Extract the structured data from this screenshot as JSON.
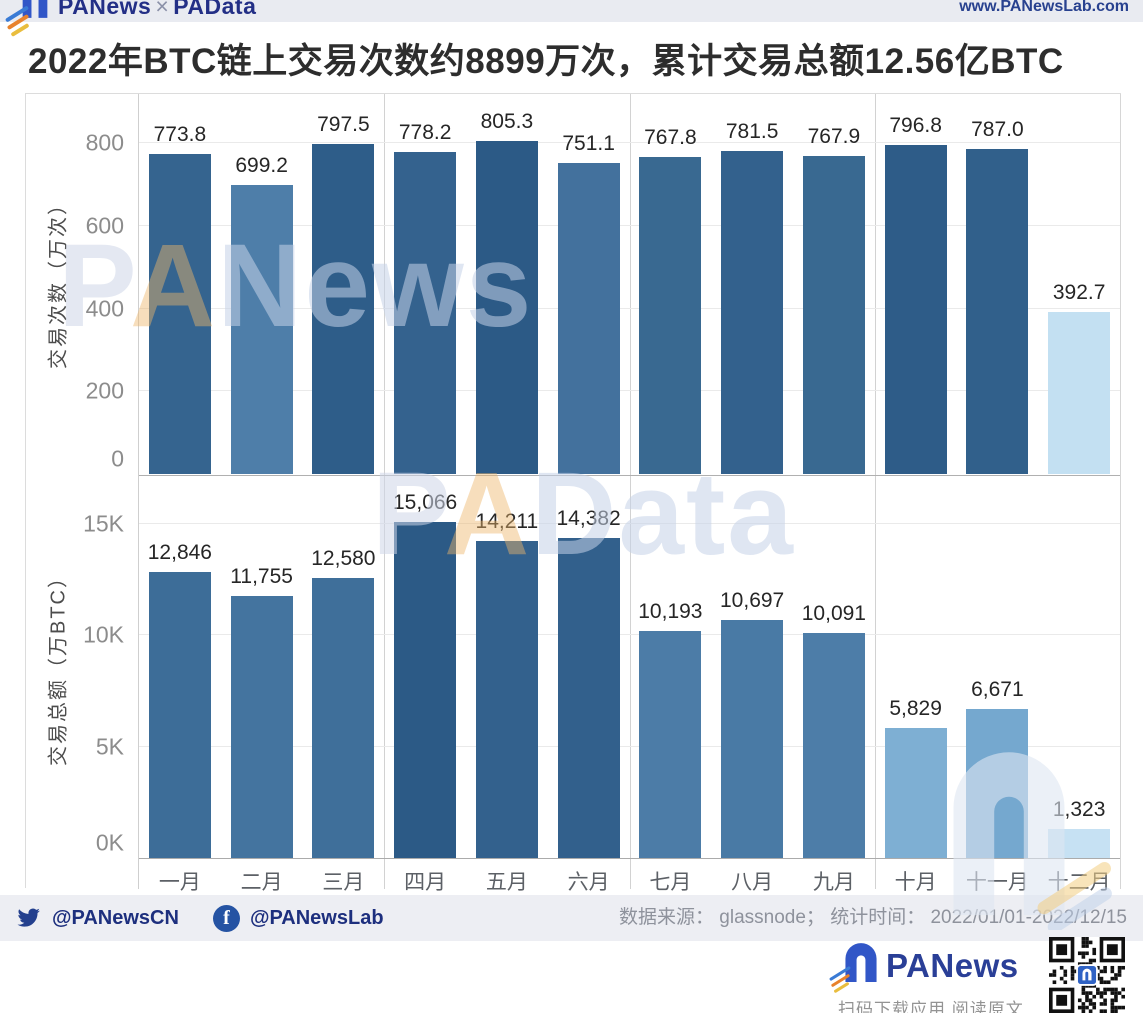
{
  "header": {
    "brand_primary": "PANews",
    "brand_sep": "×",
    "brand_secondary": "PAData",
    "url": "www.PANewsLab.com"
  },
  "title": "2022年BTC链上交易次数约8899万次，累计交易总额12.56亿BTC",
  "watermarks": {
    "top": "PANews",
    "bottom": "PAData"
  },
  "chart_data": [
    {
      "type": "bar",
      "ylabel": "交易次数（万次）",
      "categories": [
        "一月",
        "二月",
        "三月",
        "四月",
        "五月",
        "六月",
        "七月",
        "八月",
        "九月",
        "十月",
        "十一月",
        "十二月"
      ],
      "values": [
        773.8,
        699.2,
        797.5,
        778.2,
        805.3,
        751.1,
        767.8,
        781.5,
        767.9,
        796.8,
        787.0,
        392.7
      ],
      "labels": [
        "773.8",
        "699.2",
        "797.5",
        "778.2",
        "805.3",
        "751.1",
        "767.8",
        "781.5",
        "767.9",
        "796.8",
        "787.0",
        "392.7"
      ],
      "colors": [
        "#35648F",
        "#4E7EA9",
        "#2E5D89",
        "#34628E",
        "#2C5A86",
        "#43719D",
        "#396991",
        "#33618D",
        "#396991",
        "#2E5C88",
        "#31608B",
        "#C3E0F2"
      ],
      "ylim": [
        0,
        919
      ],
      "yticks": [
        {
          "v": 0,
          "label": "0"
        },
        {
          "v": 200,
          "label": "200"
        },
        {
          "v": 400,
          "label": "400"
        },
        {
          "v": 600,
          "label": "600"
        },
        {
          "v": 800,
          "label": "800"
        }
      ],
      "grid": true,
      "legend": "none"
    },
    {
      "type": "bar",
      "ylabel": "交易总额（万BTC）",
      "categories": [
        "一月",
        "二月",
        "三月",
        "四月",
        "五月",
        "六月",
        "七月",
        "八月",
        "九月",
        "十月",
        "十一月",
        "十二月"
      ],
      "values": [
        12846,
        11755,
        12580,
        15066,
        14211,
        14382,
        10193,
        10697,
        10091,
        5829,
        6671,
        1323
      ],
      "labels": [
        "12,846",
        "11,755",
        "12,580",
        "15,066",
        "14,211",
        "14,382",
        "10,193",
        "10,697",
        "10,091",
        "5,829",
        "6,671",
        "1,323"
      ],
      "colors": [
        "#3D6D98",
        "#44749F",
        "#3F6F9A",
        "#2C5A86",
        "#33618D",
        "#32608C",
        "#4C7CA7",
        "#497AA5",
        "#4D7DA8",
        "#7EAFD3",
        "#75A8CF",
        "#C6E1F3"
      ],
      "ylim": [
        0,
        17150
      ],
      "yticks": [
        {
          "v": 0,
          "label": "0K"
        },
        {
          "v": 5000,
          "label": "5K"
        },
        {
          "v": 10000,
          "label": "10K"
        },
        {
          "v": 15000,
          "label": "15K"
        }
      ],
      "grid": true,
      "legend": "none"
    }
  ],
  "footer": {
    "twitter_handle": "@PANewsCN",
    "facebook_handle": "@PANewsLab",
    "source": "数据来源： glassnode； 统计时间： 2022/01/01-2022/12/15"
  },
  "brand_footer": {
    "name": "PANews",
    "caption": "扫码下载应用 阅读原文"
  },
  "colors": {
    "accent_dark_bar": "#2C5A86",
    "accent_light_bar": "#C6E1F3",
    "brand_navy": "#232f86",
    "header_bg": "#e9ebf1",
    "footer_bg": "#edeef3"
  }
}
